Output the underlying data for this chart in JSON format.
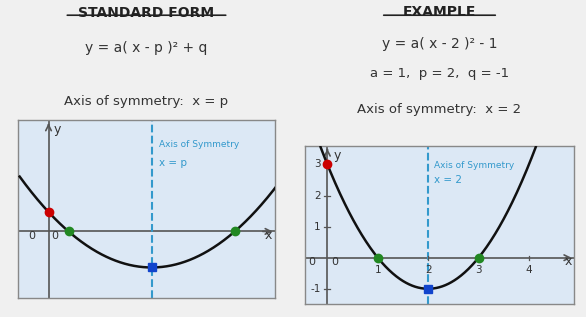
{
  "title_left": "STANDARD FORM",
  "formula_left": "y = a( x - p )² + q",
  "axis_sym_label_left": "Axis of symmetry:  x = p",
  "title_right": "EXAMPLE",
  "formula_right": "y = a( x - 2 )² - 1",
  "params_right": "a = 1,  p = 2,  q = -1",
  "axis_sym_label_right": "Axis of symmetry:  x = 2",
  "bg_color": "#f0f0f0",
  "panel_bg": "#dce8f5",
  "curve_color": "#111111",
  "axis_color": "#555555",
  "dashed_color": "#3399cc",
  "dot_red": "#cc0000",
  "dot_green": "#228822",
  "dot_blue": "#1144cc"
}
